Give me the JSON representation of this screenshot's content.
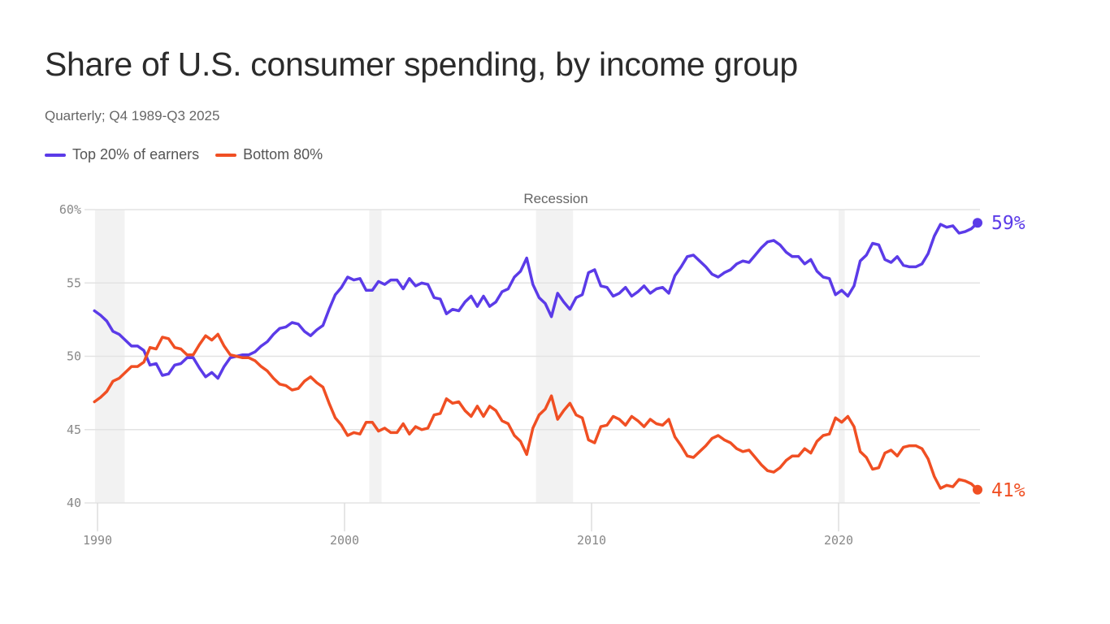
{
  "title": "Share of U.S. consumer spending, by income group",
  "subtitle": "Quarterly; Q4 1989-Q3 2025",
  "colors": {
    "top": "#5b3be8",
    "bottom": "#f04f23",
    "grid": "#e3e3e3",
    "recession": "#f2f2f2"
  },
  "chart_data": {
    "type": "line",
    "title": "Share of U.S. consumer spending, by income group",
    "subtitle": "Quarterly; Q4 1989-Q3 2025",
    "xlabel": "",
    "ylabel": "",
    "ylim": [
      40,
      60
    ],
    "xlim": [
      1989.75,
      2025.75
    ],
    "y_ticks": [
      {
        "value": 60,
        "label": "60%"
      },
      {
        "value": 55,
        "label": "55"
      },
      {
        "value": 50,
        "label": "50"
      },
      {
        "value": 45,
        "label": "45"
      },
      {
        "value": 40,
        "label": "40"
      }
    ],
    "x_ticks": [
      {
        "value": 1990,
        "label": "1990"
      },
      {
        "value": 2000,
        "label": "2000"
      },
      {
        "value": 2010,
        "label": "2010"
      },
      {
        "value": 2020,
        "label": "2020"
      }
    ],
    "grid": "horizontal",
    "legend": "top-left",
    "recession_label": "Recession",
    "recessions": [
      [
        1989.9,
        1991.1
      ],
      [
        2001.0,
        2001.5
      ],
      [
        2007.75,
        2009.25
      ],
      [
        2020.0,
        2020.25
      ]
    ],
    "first_quarter": "1989Q4",
    "last_quarter": "2025Q3",
    "series": [
      {
        "name": "Top 20% of earners",
        "end_label": "59%",
        "color": "#5b3be8",
        "values": [
          53.1,
          52.8,
          52.4,
          51.7,
          51.5,
          51.1,
          50.7,
          50.7,
          50.4,
          49.4,
          49.5,
          48.7,
          48.8,
          49.4,
          49.5,
          49.9,
          49.9,
          49.2,
          48.6,
          48.9,
          48.5,
          49.3,
          49.9,
          50.0,
          50.1,
          50.1,
          50.3,
          50.7,
          51.0,
          51.5,
          51.9,
          52.0,
          52.3,
          52.2,
          51.7,
          51.4,
          51.8,
          52.1,
          53.2,
          54.2,
          54.7,
          55.4,
          55.2,
          55.3,
          54.5,
          54.5,
          55.1,
          54.9,
          55.2,
          55.2,
          54.6,
          55.3,
          54.8,
          55.0,
          54.9,
          54.0,
          53.9,
          52.9,
          53.2,
          53.1,
          53.7,
          54.1,
          53.4,
          54.1,
          53.4,
          53.7,
          54.4,
          54.6,
          55.4,
          55.8,
          56.7,
          54.9,
          54.0,
          53.6,
          52.7,
          54.3,
          53.7,
          53.2,
          54.0,
          54.2,
          55.7,
          55.9,
          54.8,
          54.7,
          54.1,
          54.3,
          54.7,
          54.1,
          54.4,
          54.8,
          54.3,
          54.6,
          54.7,
          54.3,
          55.5,
          56.1,
          56.8,
          56.9,
          56.5,
          56.1,
          55.6,
          55.4,
          55.7,
          55.9,
          56.3,
          56.5,
          56.4,
          56.9,
          57.4,
          57.8,
          57.9,
          57.6,
          57.1,
          56.8,
          56.8,
          56.3,
          56.6,
          55.8,
          55.4,
          55.3,
          54.2,
          54.5,
          54.1,
          54.8,
          56.5,
          56.9,
          57.7,
          57.6,
          56.6,
          56.4,
          56.8,
          56.2,
          56.1,
          56.1,
          56.3,
          57.0,
          58.2,
          59.0,
          58.8,
          58.9,
          58.4,
          58.5,
          58.7,
          59.1
        ]
      },
      {
        "name": "Bottom 80%",
        "end_label": "41%",
        "color": "#f04f23",
        "values": [
          46.9,
          47.2,
          47.6,
          48.3,
          48.5,
          48.9,
          49.3,
          49.3,
          49.6,
          50.6,
          50.5,
          51.3,
          51.2,
          50.6,
          50.5,
          50.1,
          50.1,
          50.8,
          51.4,
          51.1,
          51.5,
          50.7,
          50.1,
          50.0,
          49.9,
          49.9,
          49.7,
          49.3,
          49.0,
          48.5,
          48.1,
          48.0,
          47.7,
          47.8,
          48.3,
          48.6,
          48.2,
          47.9,
          46.8,
          45.8,
          45.3,
          44.6,
          44.8,
          44.7,
          45.5,
          45.5,
          44.9,
          45.1,
          44.8,
          44.8,
          45.4,
          44.7,
          45.2,
          45.0,
          45.1,
          46.0,
          46.1,
          47.1,
          46.8,
          46.9,
          46.3,
          45.9,
          46.6,
          45.9,
          46.6,
          46.3,
          45.6,
          45.4,
          44.6,
          44.2,
          43.3,
          45.1,
          46.0,
          46.4,
          47.3,
          45.7,
          46.3,
          46.8,
          46.0,
          45.8,
          44.3,
          44.1,
          45.2,
          45.3,
          45.9,
          45.7,
          45.3,
          45.9,
          45.6,
          45.2,
          45.7,
          45.4,
          45.3,
          45.7,
          44.5,
          43.9,
          43.2,
          43.1,
          43.5,
          43.9,
          44.4,
          44.6,
          44.3,
          44.1,
          43.7,
          43.5,
          43.6,
          43.1,
          42.6,
          42.2,
          42.1,
          42.4,
          42.9,
          43.2,
          43.2,
          43.7,
          43.4,
          44.2,
          44.6,
          44.7,
          45.8,
          45.5,
          45.9,
          45.2,
          43.5,
          43.1,
          42.3,
          42.4,
          43.4,
          43.6,
          43.2,
          43.8,
          43.9,
          43.9,
          43.7,
          43.0,
          41.8,
          41.0,
          41.2,
          41.1,
          41.6,
          41.5,
          41.3,
          40.9
        ]
      }
    ]
  }
}
